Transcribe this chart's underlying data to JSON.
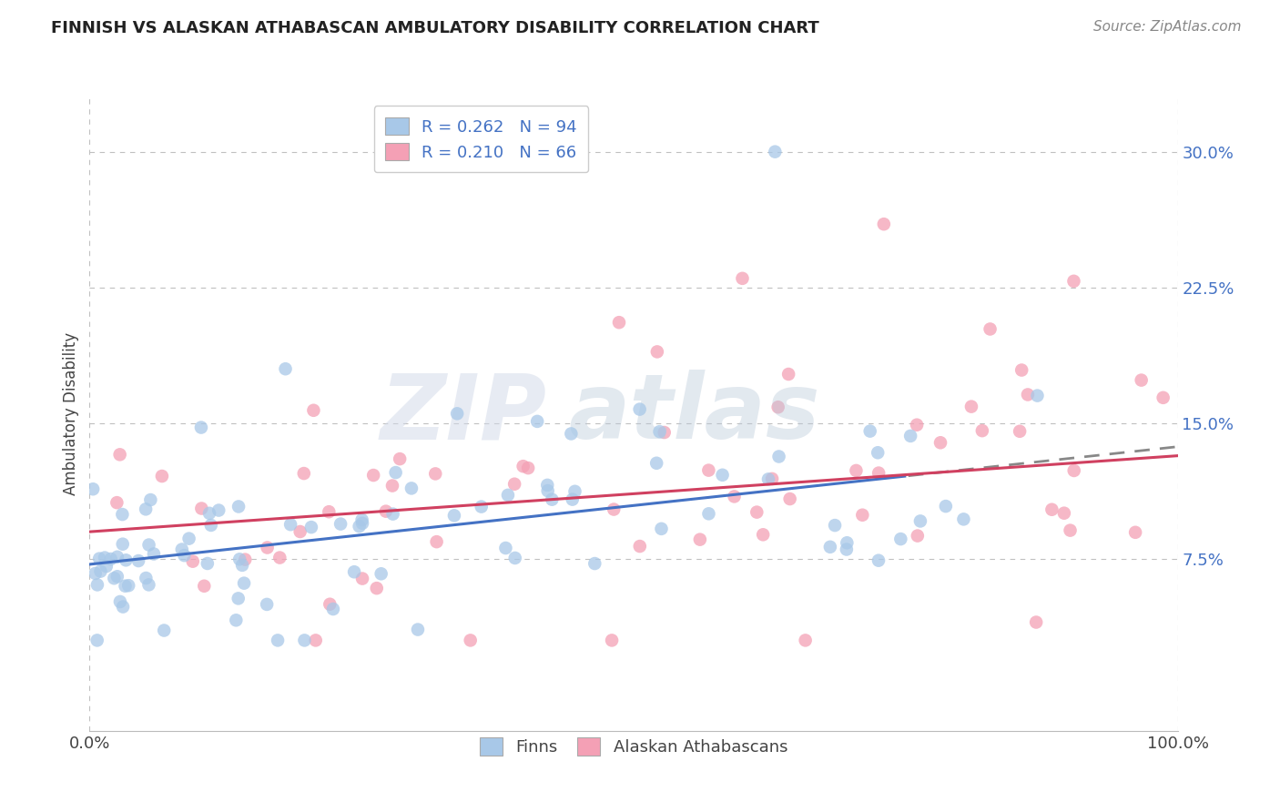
{
  "title": "FINNISH VS ALASKAN ATHABASCAN AMBULATORY DISABILITY CORRELATION CHART",
  "source": "Source: ZipAtlas.com",
  "ylabel": "Ambulatory Disability",
  "xlim": [
    0,
    100
  ],
  "ylim": [
    -2,
    33
  ],
  "yticks": [
    7.5,
    15.0,
    22.5,
    30.0
  ],
  "xtick_labels": [
    "0.0%",
    "100.0%"
  ],
  "ytick_labels": [
    "7.5%",
    "15.0%",
    "22.5%",
    "30.0%"
  ],
  "legend_top_labels": [
    "R = 0.262   N = 94",
    "R = 0.210   N = 66"
  ],
  "legend_bottom": [
    "Finns",
    "Alaskan Athabascans"
  ],
  "finn_color": "#a8c8e8",
  "finn_line_color": "#4472c4",
  "athabascan_color": "#f4a0b5",
  "athabascan_line_color": "#d04060",
  "background_color": "#ffffff",
  "grid_color": "#c0c0c0",
  "finn_line_intercept": 7.2,
  "finn_line_slope": 0.065,
  "finn_solid_end": 75,
  "ath_line_intercept": 9.0,
  "ath_line_slope": 0.042,
  "title_fontsize": 13,
  "source_fontsize": 11,
  "tick_fontsize": 13
}
